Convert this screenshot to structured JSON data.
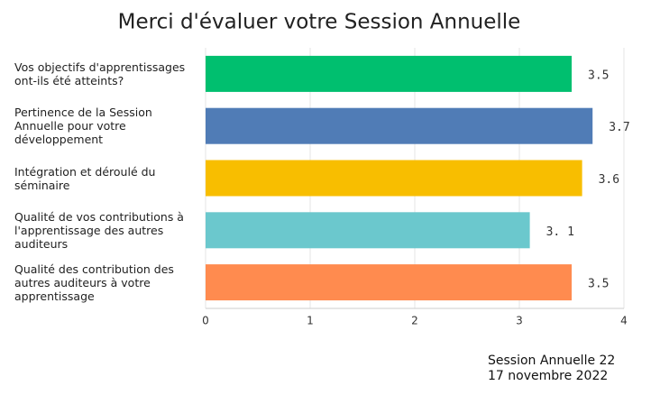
{
  "chart_data": {
    "type": "bar",
    "orientation": "horizontal",
    "title": "Merci d'évaluer votre Session Annuelle",
    "categories": [
      "Vos objectifs d'apprentissages ont-ils été atteints?",
      "Pertinence de la Session Annuelle pour votre développement",
      "Intégration et déroulé du séminaire",
      "Qualité de vos contributions à l'apprentissage des autres auditeurs",
      "Qualité des contribution des autres auditeurs à votre apprentissage"
    ],
    "values": [
      3.5,
      3.7,
      3.6,
      3.1,
      3.5
    ],
    "value_labels": [
      "3.5",
      "3.7",
      "3.6",
      "3. 1",
      "3.5"
    ],
    "colors": [
      "#00bf6f",
      "#507cb6",
      "#f8be00",
      "#6bc8cd",
      "#ff8b4f"
    ],
    "xlim": [
      0,
      4
    ],
    "xticks": [
      0,
      1,
      2,
      3,
      4
    ],
    "grid": true,
    "footnote": [
      "Session Annuelle 22",
      "17 novembre 2022"
    ]
  }
}
